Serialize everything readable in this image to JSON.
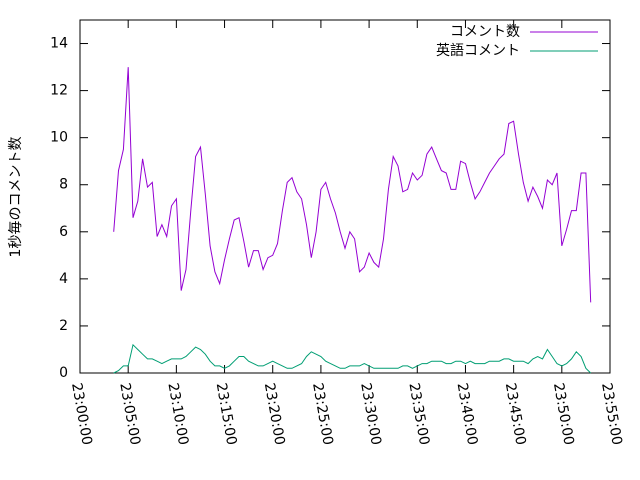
{
  "chart_data": {
    "type": "line",
    "ylabel": "1秒毎のコメント数",
    "x": [
      "23:03:30",
      "23:04:00",
      "23:04:30",
      "23:05:00",
      "23:05:30",
      "23:06:00",
      "23:06:30",
      "23:07:00",
      "23:07:30",
      "23:08:00",
      "23:08:30",
      "23:09:00",
      "23:09:30",
      "23:10:00",
      "23:10:30",
      "23:11:00",
      "23:11:30",
      "23:12:00",
      "23:12:30",
      "23:13:00",
      "23:13:30",
      "23:14:00",
      "23:14:30",
      "23:15:00",
      "23:15:30",
      "23:16:00",
      "23:16:30",
      "23:17:00",
      "23:17:30",
      "23:18:00",
      "23:18:30",
      "23:19:00",
      "23:19:30",
      "23:20:00",
      "23:20:30",
      "23:21:00",
      "23:21:30",
      "23:22:00",
      "23:22:30",
      "23:23:00",
      "23:23:30",
      "23:24:00",
      "23:24:30",
      "23:25:00",
      "23:25:30",
      "23:26:00",
      "23:26:30",
      "23:27:00",
      "23:27:30",
      "23:28:00",
      "23:28:30",
      "23:29:00",
      "23:29:30",
      "23:30:00",
      "23:30:30",
      "23:31:00",
      "23:31:30",
      "23:32:00",
      "23:32:30",
      "23:33:00",
      "23:33:30",
      "23:34:00",
      "23:34:30",
      "23:35:00",
      "23:35:30",
      "23:36:00",
      "23:36:30",
      "23:37:00",
      "23:37:30",
      "23:38:00",
      "23:38:30",
      "23:39:00",
      "23:39:30",
      "23:40:00",
      "23:40:30",
      "23:41:00",
      "23:41:30",
      "23:42:00",
      "23:42:30",
      "23:43:00",
      "23:43:30",
      "23:44:00",
      "23:44:30",
      "23:45:00",
      "23:45:30",
      "23:46:00",
      "23:46:30",
      "23:47:00",
      "23:47:30",
      "23:48:00",
      "23:48:30",
      "23:49:00",
      "23:49:30",
      "23:50:00",
      "23:50:30",
      "23:51:00",
      "23:51:30",
      "23:52:00",
      "23:52:30",
      "23:53:00"
    ],
    "series": [
      {
        "name": "コメント数",
        "color": "#9400d3",
        "values": [
          6.0,
          8.6,
          9.5,
          13.0,
          6.6,
          7.3,
          9.1,
          7.9,
          8.1,
          5.8,
          6.3,
          5.8,
          7.1,
          7.4,
          3.5,
          4.4,
          6.9,
          9.2,
          9.6,
          7.6,
          5.4,
          4.3,
          3.8,
          4.8,
          5.7,
          6.5,
          6.6,
          5.6,
          4.5,
          5.2,
          5.2,
          4.4,
          4.9,
          5.0,
          5.5,
          6.9,
          8.1,
          8.3,
          7.7,
          7.4,
          6.3,
          4.9,
          6.0,
          7.8,
          8.1,
          7.4,
          6.8,
          6.0,
          5.3,
          6.0,
          5.7,
          4.3,
          4.5,
          5.1,
          4.7,
          4.5,
          5.7,
          7.8,
          9.2,
          8.8,
          7.7,
          7.8,
          8.5,
          8.2,
          8.4,
          9.3,
          9.6,
          9.1,
          8.6,
          8.5,
          7.8,
          7.8,
          9.0,
          8.9,
          8.1,
          7.4,
          7.7,
          8.1,
          8.5,
          8.8,
          9.1,
          9.3,
          10.6,
          10.7,
          9.3,
          8.1,
          7.3,
          7.9,
          7.5,
          7.0,
          8.2,
          8.0,
          8.5,
          5.4,
          6.1,
          6.9,
          6.9,
          8.5,
          8.5,
          3.0
        ]
      },
      {
        "name": "英語コメント",
        "color": "#009e73",
        "values": [
          0.0,
          0.1,
          0.3,
          0.3,
          1.2,
          1.0,
          0.8,
          0.6,
          0.6,
          0.5,
          0.4,
          0.5,
          0.6,
          0.6,
          0.6,
          0.7,
          0.9,
          1.1,
          1.0,
          0.8,
          0.5,
          0.3,
          0.3,
          0.2,
          0.3,
          0.5,
          0.7,
          0.7,
          0.5,
          0.4,
          0.3,
          0.3,
          0.4,
          0.5,
          0.4,
          0.3,
          0.2,
          0.2,
          0.3,
          0.4,
          0.7,
          0.9,
          0.8,
          0.7,
          0.5,
          0.4,
          0.3,
          0.2,
          0.2,
          0.3,
          0.3,
          0.3,
          0.4,
          0.3,
          0.2,
          0.2,
          0.2,
          0.2,
          0.2,
          0.2,
          0.3,
          0.3,
          0.2,
          0.3,
          0.4,
          0.4,
          0.5,
          0.5,
          0.5,
          0.4,
          0.4,
          0.5,
          0.5,
          0.4,
          0.5,
          0.4,
          0.4,
          0.4,
          0.5,
          0.5,
          0.5,
          0.6,
          0.6,
          0.5,
          0.5,
          0.5,
          0.4,
          0.6,
          0.7,
          0.6,
          1.0,
          0.7,
          0.4,
          0.3,
          0.4,
          0.6,
          0.9,
          0.7,
          0.2,
          0.0
        ]
      }
    ],
    "xlim": [
      "23:00:00",
      "23:55:00"
    ],
    "xticks": [
      "23:00:00",
      "23:05:00",
      "23:10:00",
      "23:15:00",
      "23:20:00",
      "23:25:00",
      "23:30:00",
      "23:35:00",
      "23:40:00",
      "23:45:00",
      "23:50:00",
      "23:55:00"
    ],
    "ylim": [
      0,
      15
    ],
    "yticks": [
      0,
      2,
      4,
      6,
      8,
      10,
      12,
      14
    ],
    "legend": "top right",
    "grid": false
  }
}
